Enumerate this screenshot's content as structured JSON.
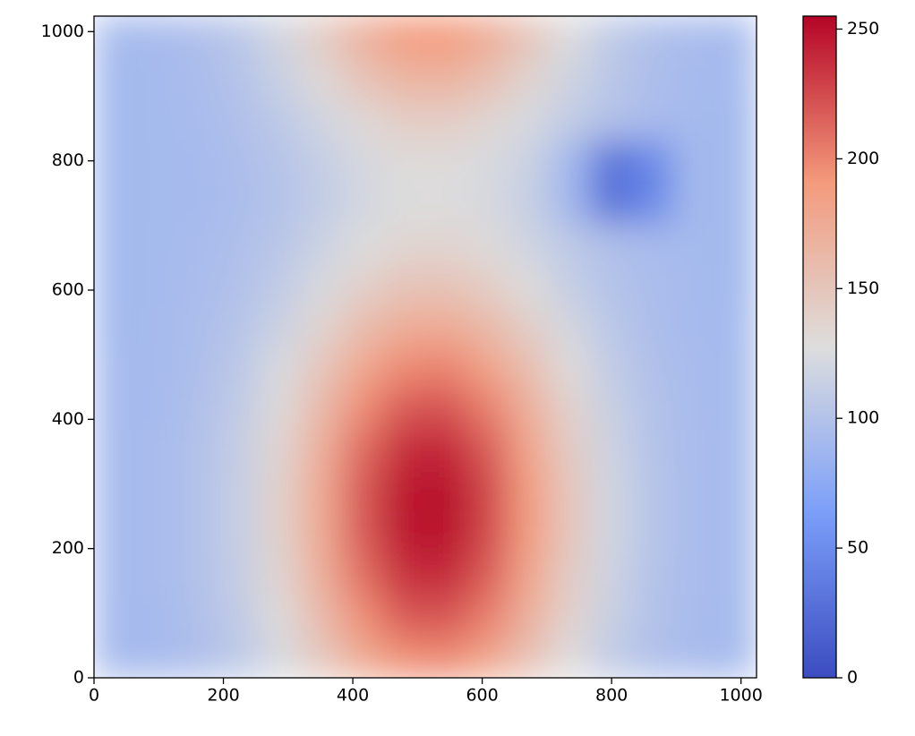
{
  "chart_data": {
    "type": "heatmap",
    "colormap": "coolwarm",
    "x": [
      32,
      96,
      160,
      224,
      288,
      352,
      416,
      480,
      544,
      608,
      672,
      736,
      800,
      864,
      928,
      992
    ],
    "y": [
      32,
      96,
      160,
      224,
      288,
      352,
      416,
      480,
      544,
      608,
      672,
      736,
      800,
      864,
      928,
      992
    ],
    "z": [
      [
        91,
        92,
        96,
        106,
        123,
        148,
        176,
        195,
        198,
        182,
        155,
        129,
        109,
        98,
        93,
        91
      ],
      [
        91,
        92,
        98,
        109,
        130,
        161,
        196,
        219,
        222,
        203,
        170,
        138,
        114,
        100,
        93,
        91
      ],
      [
        91,
        93,
        99,
        112,
        136,
        171,
        210,
        237,
        240,
        218,
        181,
        144,
        117,
        101,
        94,
        91
      ],
      [
        91,
        93,
        99,
        113,
        139,
        176,
        219,
        247,
        251,
        227,
        188,
        148,
        119,
        102,
        94,
        91
      ],
      [
        91,
        93,
        99,
        113,
        139,
        177,
        220,
        248,
        252,
        228,
        188,
        148,
        119,
        102,
        94,
        91
      ],
      [
        91,
        93,
        99,
        112,
        136,
        172,
        212,
        239,
        242,
        219,
        182,
        145,
        117,
        101,
        94,
        91
      ],
      [
        91,
        92,
        98,
        109,
        131,
        162,
        197,
        220,
        223,
        203,
        171,
        138,
        114,
        100,
        93,
        91
      ],
      [
        91,
        92,
        96,
        106,
        124,
        149,
        179,
        198,
        201,
        184,
        157,
        130,
        110,
        98,
        93,
        91
      ],
      [
        90,
        92,
        95,
        102,
        116,
        136,
        158,
        173,
        175,
        162,
        142,
        121,
        105,
        96,
        92,
        91
      ],
      [
        90,
        91,
        94,
        99,
        109,
        123,
        140,
        151,
        152,
        143,
        128,
        112,
        101,
        95,
        92,
        90
      ],
      [
        90,
        91,
        93,
        97,
        104,
        115,
        127,
        135,
        136,
        130,
        118,
        107,
        98,
        93,
        91,
        90
      ],
      [
        90,
        91,
        92,
        95,
        101,
        110,
        120,
        127,
        128,
        122,
        113,
        89,
        27,
        45,
        91,
        90
      ],
      [
        90,
        91,
        92,
        96,
        102,
        112,
        122,
        130,
        130,
        124,
        115,
        90,
        27,
        45,
        91,
        90
      ],
      [
        90,
        91,
        93,
        98,
        107,
        119,
        133,
        143,
        144,
        136,
        123,
        110,
        100,
        94,
        91,
        90
      ],
      [
        90,
        91,
        94,
        101,
        114,
        132,
        152,
        166,
        168,
        156,
        137,
        118,
        104,
        96,
        92,
        91
      ],
      [
        91,
        92,
        96,
        104,
        120,
        144,
        170,
        188,
        190,
        175,
        151,
        126,
        108,
        97,
        93,
        91
      ]
    ],
    "xlim": [
      0,
      1024
    ],
    "ylim": [
      0,
      1024
    ],
    "xticks": [
      0,
      200,
      400,
      600,
      800,
      1000
    ],
    "yticks": [
      0,
      200,
      400,
      600,
      800,
      1000
    ],
    "clim": [
      0,
      255
    ],
    "cticks": [
      0,
      50,
      100,
      150,
      200,
      250
    ]
  }
}
